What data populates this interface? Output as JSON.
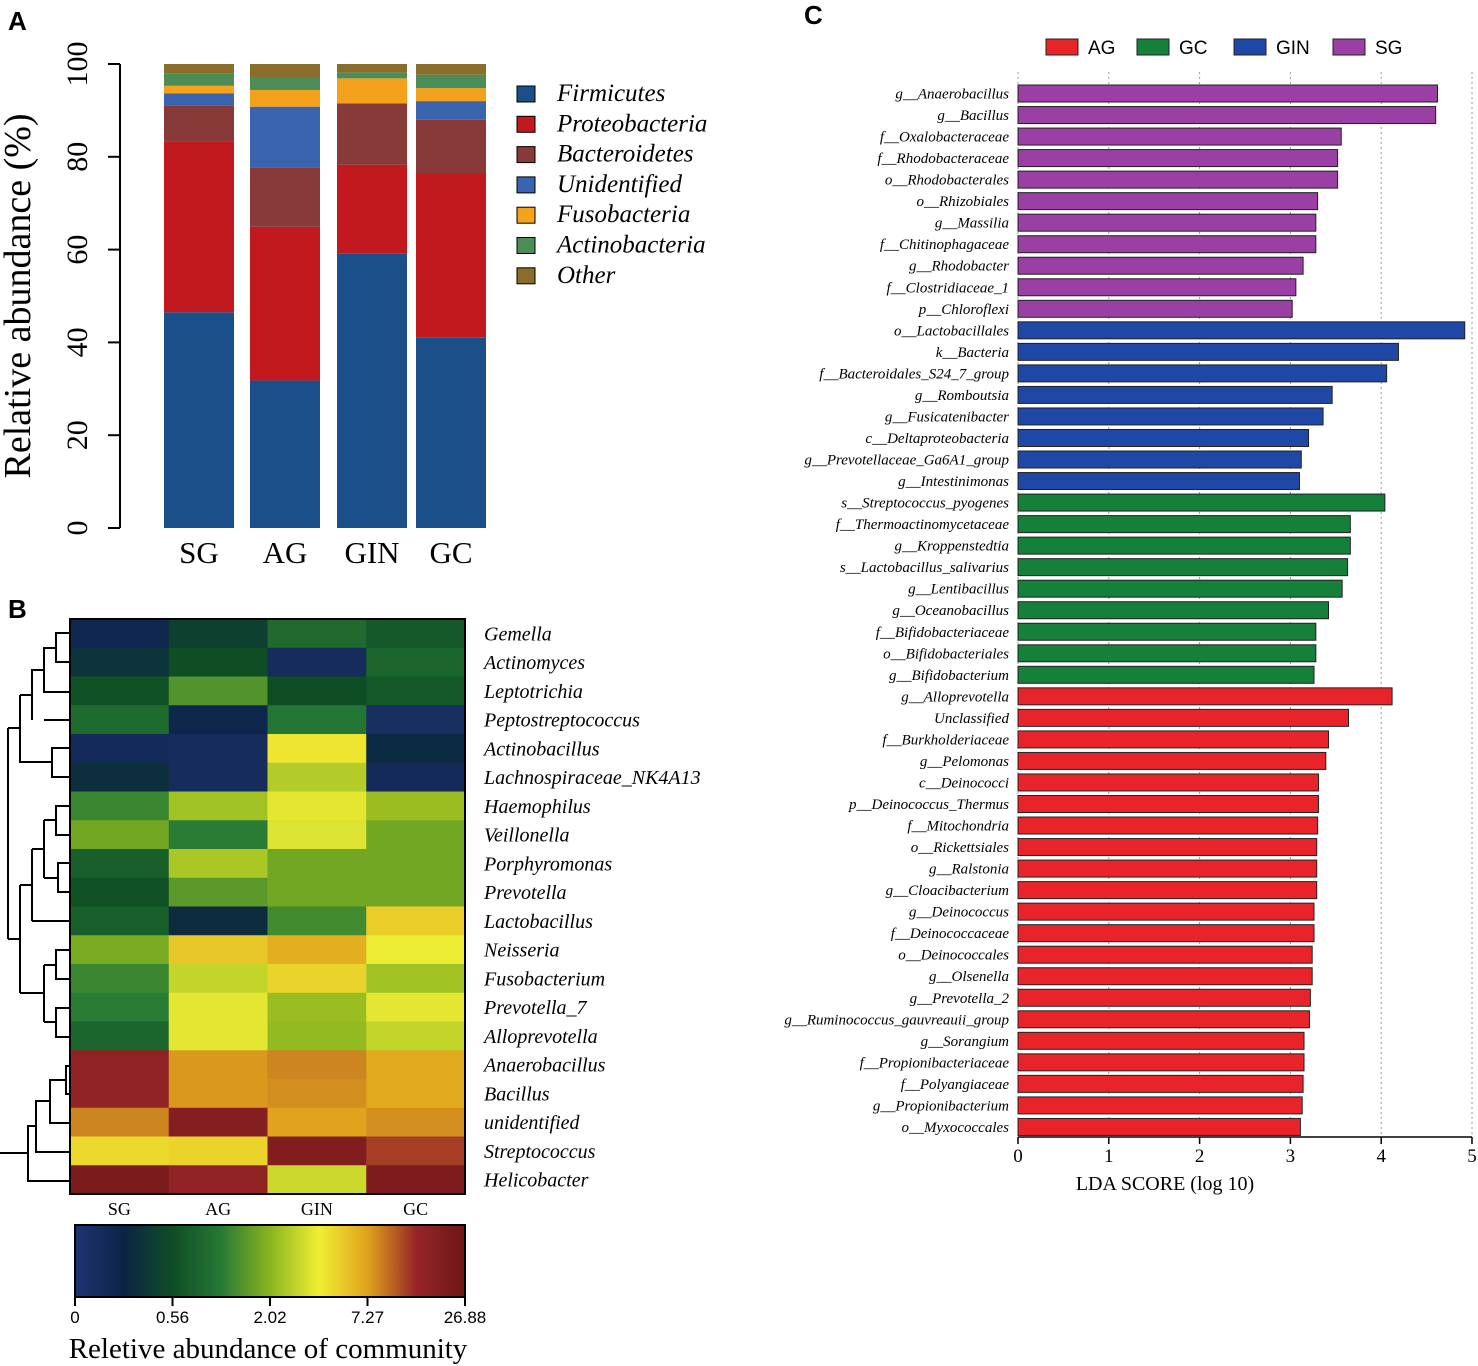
{
  "panels": {
    "a": "A",
    "b": "B",
    "c": "C"
  },
  "chart_data": [
    {
      "type": "stacked-bar",
      "panel": "A",
      "ylabel": "Relative abundance (%)",
      "ylim": [
        0,
        100
      ],
      "yticks": [
        "0",
        "20",
        "40",
        "60",
        "80",
        "100"
      ],
      "categories": [
        "SG",
        "AG",
        "GIN",
        "GC"
      ],
      "series": [
        {
          "name": "Firmicutes",
          "color": "#1b4f8a",
          "values": [
            46.5,
            31.8,
            59.1,
            41.0
          ]
        },
        {
          "name": "Proteobacteria",
          "color": "#c1191e",
          "values": [
            36.7,
            33.1,
            19.2,
            35.4
          ]
        },
        {
          "name": "Bacteroidetes",
          "color": "#883a39",
          "values": [
            7.9,
            12.7,
            13.2,
            11.6
          ]
        },
        {
          "name": "Unidentified",
          "color": "#3a63b0",
          "values": [
            2.6,
            13.2,
            0.0,
            4.0
          ]
        },
        {
          "name": "Fusobacteria",
          "color": "#f4a11b",
          "values": [
            1.6,
            3.6,
            5.4,
            2.8
          ]
        },
        {
          "name": "Actinobacteria",
          "color": "#4b8c57",
          "values": [
            2.6,
            2.8,
            1.3,
            2.9
          ]
        },
        {
          "name": "Other",
          "color": "#8a6d2b",
          "values": [
            2.1,
            2.8,
            1.8,
            2.3
          ]
        }
      ]
    },
    {
      "type": "heatmap",
      "panel": "B",
      "columns": [
        "SG",
        "AG",
        "GIN",
        "GC"
      ],
      "rows": [
        "Gemella",
        "Actinomyces",
        "Leptotrichia",
        "Peptostreptococcus",
        "Actinobacillus",
        "Lachnospiraceae_NK4A13",
        "Haemophilus",
        "Veillonella",
        "Porphyromonas",
        "Prevotella",
        "Lactobacillus",
        "Neisseria",
        "Fusobacterium",
        "Prevotella_7",
        "Alloprevotella",
        "Anaerobacillus",
        "Bacillus",
        "unidentified",
        "Streptococcus",
        "Helicobacter"
      ],
      "values": [
        [
          0.1,
          0.21,
          0.33,
          0.28
        ],
        [
          0.17,
          0.25,
          0.06,
          0.32
        ],
        [
          0.26,
          0.43,
          0.25,
          0.28
        ],
        [
          0.33,
          0.11,
          0.36,
          0.05
        ],
        [
          0.07,
          0.06,
          0.64,
          0.14
        ],
        [
          0.16,
          0.06,
          0.55,
          0.07
        ],
        [
          0.4,
          0.53,
          0.61,
          0.52
        ],
        [
          0.47,
          0.38,
          0.6,
          0.47
        ],
        [
          0.3,
          0.54,
          0.47,
          0.47
        ],
        [
          0.26,
          0.44,
          0.47,
          0.47
        ],
        [
          0.3,
          0.15,
          0.41,
          0.68
        ],
        [
          0.48,
          0.69,
          0.73,
          0.62
        ],
        [
          0.4,
          0.57,
          0.67,
          0.53
        ],
        [
          0.38,
          0.61,
          0.52,
          0.61
        ],
        [
          0.32,
          0.61,
          0.51,
          0.57
        ],
        [
          0.89,
          0.76,
          0.78,
          0.74
        ],
        [
          0.89,
          0.76,
          0.77,
          0.74
        ],
        [
          0.78,
          0.93,
          0.75,
          0.77
        ],
        [
          0.66,
          0.67,
          0.94,
          0.85
        ],
        [
          0.96,
          0.89,
          0.58,
          0.95
        ]
      ],
      "colorbar": {
        "ticks": [
          "0",
          "0.56",
          "2.02",
          "7.27",
          "26.88"
        ],
        "stops": [
          "#1f3472",
          "#0c2447",
          "#0f4d25",
          "#267a35",
          "#8ab51f",
          "#f0ee34",
          "#dfa31c",
          "#962527",
          "#6e1616"
        ],
        "label": "Reletive abundance of community"
      }
    },
    {
      "type": "bar",
      "orientation": "horizontal",
      "panel": "C",
      "xlabel": "LDA SCORE (log 10)",
      "xlim": [
        0,
        5
      ],
      "xticks": [
        "0",
        "1",
        "2",
        "3",
        "4",
        "5"
      ],
      "legend": [
        {
          "name": "AG",
          "color": "#e8242a"
        },
        {
          "name": "GC",
          "color": "#14803a"
        },
        {
          "name": "GIN",
          "color": "#1f48a6"
        },
        {
          "name": "SG",
          "color": "#9a3fa3"
        }
      ],
      "series_colors": {
        "SG": "#9a3fa3",
        "GIN": "#1f48a6",
        "GC": "#14803a",
        "AG": "#e8242a"
      },
      "bars": [
        {
          "label": "g__Anaerobacillus",
          "group": "SG",
          "value": 4.62
        },
        {
          "label": "g__Bacillus",
          "group": "SG",
          "value": 4.6
        },
        {
          "label": "f__Oxalobacteraceae",
          "group": "SG",
          "value": 3.56
        },
        {
          "label": "f__Rhodobacteraceae",
          "group": "SG",
          "value": 3.52
        },
        {
          "label": "o__Rhodobacterales",
          "group": "SG",
          "value": 3.52
        },
        {
          "label": "o__Rhizobiales",
          "group": "SG",
          "value": 3.3
        },
        {
          "label": "g__Massilia",
          "group": "SG",
          "value": 3.28
        },
        {
          "label": "f__Chitinophagaceae",
          "group": "SG",
          "value": 3.28
        },
        {
          "label": "g__Rhodobacter",
          "group": "SG",
          "value": 3.14
        },
        {
          "label": "f__Clostridiaceae_1",
          "group": "SG",
          "value": 3.06
        },
        {
          "label": "p__Chloroflexi",
          "group": "SG",
          "value": 3.02
        },
        {
          "label": "o__Lactobacillales",
          "group": "GIN",
          "value": 4.92
        },
        {
          "label": "k__Bacteria",
          "group": "GIN",
          "value": 4.19
        },
        {
          "label": "f__Bacteroidales_S24_7_group",
          "group": "GIN",
          "value": 4.06
        },
        {
          "label": "g__Romboutsia",
          "group": "GIN",
          "value": 3.46
        },
        {
          "label": "g__Fusicatenibacter",
          "group": "GIN",
          "value": 3.36
        },
        {
          "label": "c__Deltaproteobacteria",
          "group": "GIN",
          "value": 3.2
        },
        {
          "label": "g__Prevotellaceae_Ga6A1_group",
          "group": "GIN",
          "value": 3.12
        },
        {
          "label": "g__Intestinimonas",
          "group": "GIN",
          "value": 3.1
        },
        {
          "label": "s__Streptococcus_pyogenes",
          "group": "GC",
          "value": 4.04
        },
        {
          "label": "f__Thermoactinomycetaceae",
          "group": "GC",
          "value": 3.66
        },
        {
          "label": "g__Kroppenstedtia",
          "group": "GC",
          "value": 3.66
        },
        {
          "label": "s__Lactobacillus_salivarius",
          "group": "GC",
          "value": 3.63
        },
        {
          "label": "g__Lentibacillus",
          "group": "GC",
          "value": 3.57
        },
        {
          "label": "g__Oceanobacillus",
          "group": "GC",
          "value": 3.42
        },
        {
          "label": "f__Bifidobacteriaceae",
          "group": "GC",
          "value": 3.28
        },
        {
          "label": "o__Bifidobacteriales",
          "group": "GC",
          "value": 3.28
        },
        {
          "label": "g__Bifidobacterium",
          "group": "GC",
          "value": 3.26
        },
        {
          "label": "g__Alloprevotella",
          "group": "AG",
          "value": 4.12
        },
        {
          "label": "Unclassified",
          "group": "AG",
          "value": 3.64
        },
        {
          "label": "f__Burkholderiaceae",
          "group": "AG",
          "value": 3.42
        },
        {
          "label": "g__Pelomonas",
          "group": "AG",
          "value": 3.39
        },
        {
          "label": "c__Deinococci",
          "group": "AG",
          "value": 3.31
        },
        {
          "label": "p__Deinococcus_Thermus",
          "group": "AG",
          "value": 3.31
        },
        {
          "label": "f__Mitochondria",
          "group": "AG",
          "value": 3.3
        },
        {
          "label": "o__Rickettsiales",
          "group": "AG",
          "value": 3.29
        },
        {
          "label": "g__Ralstonia",
          "group": "AG",
          "value": 3.29
        },
        {
          "label": "g__Cloacibacterium",
          "group": "AG",
          "value": 3.29
        },
        {
          "label": "g__Deinococcus",
          "group": "AG",
          "value": 3.26
        },
        {
          "label": "f__Deinococcaceae",
          "group": "AG",
          "value": 3.26
        },
        {
          "label": "o__Deinococcales",
          "group": "AG",
          "value": 3.24
        },
        {
          "label": "g__Olsenella",
          "group": "AG",
          "value": 3.24
        },
        {
          "label": "g__Prevotella_2",
          "group": "AG",
          "value": 3.22
        },
        {
          "label": "g__Ruminococcus_gauvreauii_group",
          "group": "AG",
          "value": 3.21
        },
        {
          "label": "g__Sorangium",
          "group": "AG",
          "value": 3.15
        },
        {
          "label": "f__Propionibacteriaceae",
          "group": "AG",
          "value": 3.15
        },
        {
          "label": "f__Polyangiaceae",
          "group": "AG",
          "value": 3.14
        },
        {
          "label": "g__Propionibacterium",
          "group": "AG",
          "value": 3.13
        },
        {
          "label": "o__Myxococcales",
          "group": "AG",
          "value": 3.11
        }
      ]
    }
  ]
}
